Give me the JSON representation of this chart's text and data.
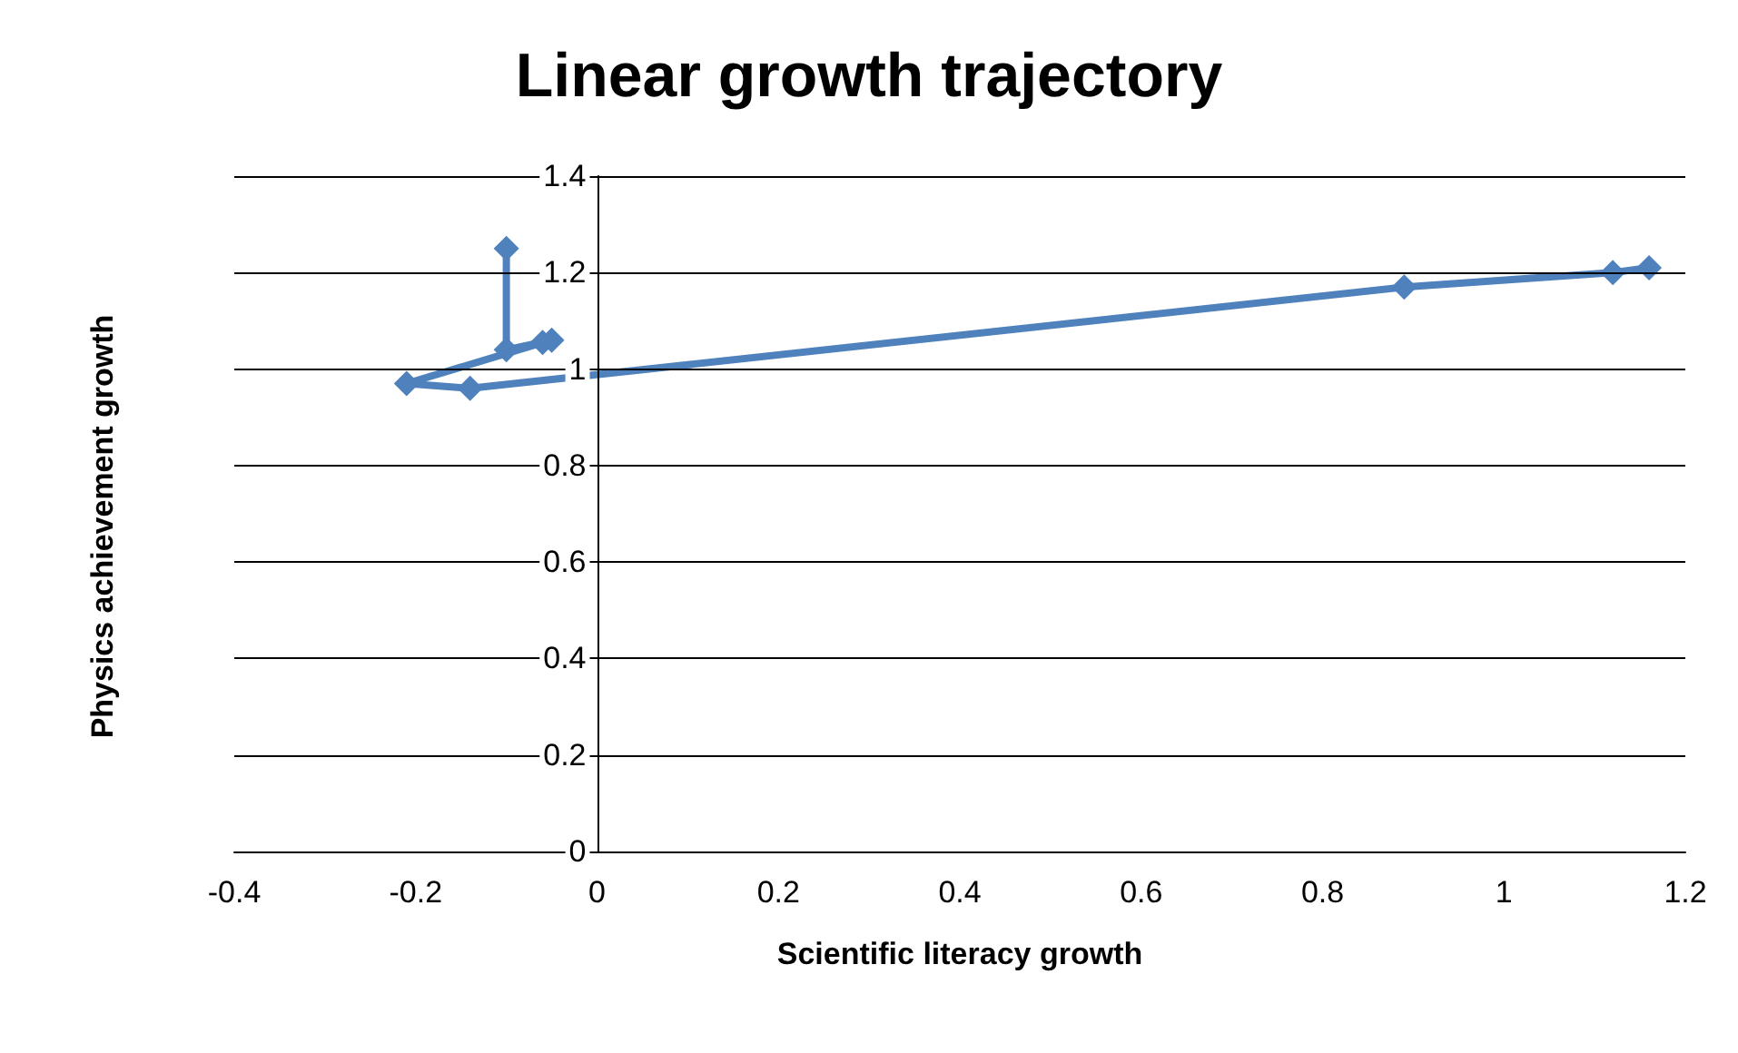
{
  "chart_data": {
    "type": "line",
    "title": "Linear growth trajectory",
    "xlabel": "Scientific literacy growth",
    "ylabel": "Physics achievement growth",
    "series": [
      {
        "color": "#4f81bd",
        "x": [
          -0.1,
          -0.1,
          -0.05,
          -0.06,
          -0.21,
          -0.14,
          0.89,
          1.12,
          1.16
        ],
        "values": [
          1.25,
          1.04,
          1.06,
          1.055,
          0.97,
          0.96,
          1.17,
          1.2,
          1.21
        ]
      }
    ],
    "xlim": [
      -0.4,
      1.2
    ],
    "xticks": [
      -0.4,
      -0.2,
      0,
      0.2,
      0.4,
      0.6,
      0.8,
      1,
      1.2
    ],
    "ylim": [
      0,
      1.4
    ],
    "yticks": [
      0,
      0.2,
      0.4,
      0.6,
      0.8,
      1,
      1.2,
      1.4
    ],
    "grid": "y",
    "marker": "diamond"
  }
}
